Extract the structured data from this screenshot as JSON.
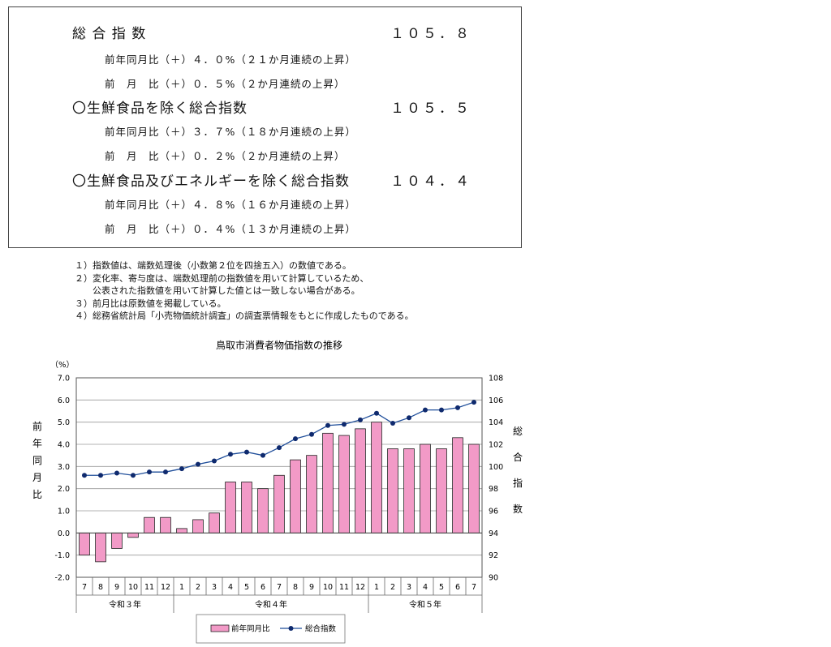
{
  "summary": {
    "items": [
      {
        "title": "総 合 指 数",
        "value": "１０５．８",
        "lines": [
          "前年同月比（＋）４．０%（２１か月連続の上昇）",
          "前　月　比（＋）０．５%（２か月連続の上昇）"
        ]
      },
      {
        "title": "〇生鮮食品を除く総合指数",
        "value": "１０５．５",
        "lines": [
          "前年同月比（＋）３．７%（１８か月連続の上昇）",
          "前　月　比（＋）０．２%（２か月連続の上昇）"
        ]
      },
      {
        "title": "〇生鮮食品及びエネルギーを除く総合指数",
        "value": "１０４．４",
        "lines": [
          "前年同月比（＋）４．８%（１６か月連続の上昇）",
          "前　月　比（＋）０．４%（１３か月連続の上昇）"
        ]
      }
    ]
  },
  "notes": [
    "１）指数値は、端数処理後（小数第２位を四捨五入）の数値である。",
    "２）変化率、寄与度は、端数処理前の指数値を用いて計算しているため、",
    "公表された指数値を用いて計算した値とは一致しない場合がある。",
    "３）前月比は原数値を掲載している。",
    "４）総務省統計局「小売物価統計調査」の調査票情報をもとに作成したものである。"
  ],
  "chart_data": {
    "type": "bar",
    "title": "鳥取市消費者物価指数の推移",
    "left_unit": "（%）",
    "ylabel": "前年同月比",
    "y2label": "総合指数",
    "ylim": [
      -2.0,
      7.0
    ],
    "yticks": [
      "7.0",
      "6.0",
      "5.0",
      "4.0",
      "3.0",
      "2.0",
      "1.0",
      "0.0",
      "-1.0",
      "-2.0"
    ],
    "y2lim": [
      90,
      108
    ],
    "y2ticks": [
      "108",
      "106",
      "104",
      "102",
      "100",
      "98",
      "96",
      "94",
      "92",
      "90"
    ],
    "categories": [
      "7",
      "8",
      "9",
      "10",
      "11",
      "12",
      "1",
      "2",
      "3",
      "4",
      "5",
      "6",
      "7",
      "8",
      "9",
      "10",
      "11",
      "12",
      "1",
      "2",
      "3",
      "4",
      "5",
      "6",
      "7"
    ],
    "groups": [
      {
        "label": "令和３年",
        "count": 6
      },
      {
        "label": "令和４年",
        "count": 12
      },
      {
        "label": "令和５年",
        "count": 7
      }
    ],
    "series": [
      {
        "name": "前年同月比",
        "type": "bar",
        "axis": "left",
        "color": "#f29ac7",
        "values": [
          -1.0,
          -1.3,
          -0.7,
          -0.2,
          0.7,
          0.7,
          0.2,
          0.6,
          0.9,
          2.3,
          2.3,
          2.0,
          2.6,
          3.3,
          3.5,
          4.5,
          4.4,
          4.7,
          5.0,
          3.8,
          3.8,
          4.0,
          3.8,
          4.3,
          4.0
        ]
      },
      {
        "name": "総合指数",
        "type": "line",
        "axis": "right",
        "color": "#1f4e9a",
        "values": [
          99.2,
          99.2,
          99.4,
          99.2,
          99.5,
          99.5,
          99.8,
          100.2,
          100.5,
          101.1,
          101.3,
          101.0,
          101.7,
          102.5,
          102.9,
          103.7,
          103.8,
          104.2,
          104.8,
          103.9,
          104.4,
          105.1,
          105.1,
          105.3,
          105.8
        ]
      }
    ],
    "grid": true,
    "legend": "bottom"
  }
}
